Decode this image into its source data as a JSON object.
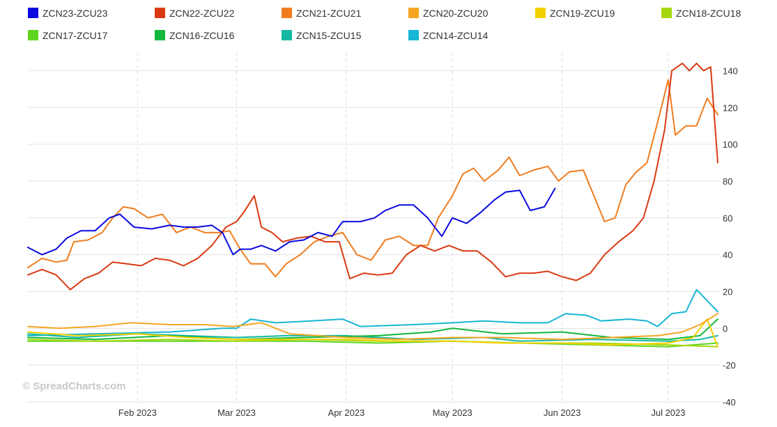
{
  "watermark": "© SpreadCharts.com",
  "chart_data": {
    "type": "line",
    "title": "",
    "xlabel": "",
    "ylabel": "",
    "x_axis": {
      "start": "2023-01-01",
      "end": "2023-07-15",
      "ticks": [
        {
          "date": "2023-02-01",
          "label": "Feb 2023"
        },
        {
          "date": "2023-03-01",
          "label": "Mar 2023"
        },
        {
          "date": "2023-04-01",
          "label": "Apr 2023"
        },
        {
          "date": "2023-05-01",
          "label": "May 2023"
        },
        {
          "date": "2023-06-01",
          "label": "Jun 2023"
        },
        {
          "date": "2023-07-01",
          "label": "Jul 2023"
        }
      ]
    },
    "ylim": [
      -40,
      150
    ],
    "yticks": [
      -40,
      -20,
      0,
      20,
      40,
      60,
      80,
      100,
      120,
      140
    ],
    "legend_position": "top",
    "series": [
      {
        "name": "ZCN23-ZCU23",
        "color": "#0a0adf",
        "points": [
          [
            "2023-01-01",
            44
          ],
          [
            "2023-01-05",
            40
          ],
          [
            "2023-01-09",
            43
          ],
          [
            "2023-01-12",
            49
          ],
          [
            "2023-01-16",
            53
          ],
          [
            "2023-01-20",
            53
          ],
          [
            "2023-01-24",
            60
          ],
          [
            "2023-01-27",
            62
          ],
          [
            "2023-01-31",
            55
          ],
          [
            "2023-02-05",
            54
          ],
          [
            "2023-02-10",
            56
          ],
          [
            "2023-02-14",
            55
          ],
          [
            "2023-02-18",
            55
          ],
          [
            "2023-02-22",
            56
          ],
          [
            "2023-02-25",
            52
          ],
          [
            "2023-02-28",
            40
          ],
          [
            "2023-03-02",
            43
          ],
          [
            "2023-03-05",
            43
          ],
          [
            "2023-03-08",
            45
          ],
          [
            "2023-03-12",
            42
          ],
          [
            "2023-03-16",
            47
          ],
          [
            "2023-03-20",
            48
          ],
          [
            "2023-03-24",
            52
          ],
          [
            "2023-03-28",
            50
          ],
          [
            "2023-03-31",
            58
          ],
          [
            "2023-04-05",
            58
          ],
          [
            "2023-04-09",
            60
          ],
          [
            "2023-04-12",
            64
          ],
          [
            "2023-04-16",
            67
          ],
          [
            "2023-04-20",
            67
          ],
          [
            "2023-04-24",
            60
          ],
          [
            "2023-04-28",
            50
          ],
          [
            "2023-05-01",
            60
          ],
          [
            "2023-05-05",
            57
          ],
          [
            "2023-05-09",
            63
          ],
          [
            "2023-05-13",
            70
          ],
          [
            "2023-05-16",
            74
          ],
          [
            "2023-05-20",
            75
          ],
          [
            "2023-05-23",
            64
          ],
          [
            "2023-05-27",
            66
          ],
          [
            "2023-05-30",
            76
          ]
        ]
      },
      {
        "name": "ZCN22-ZCU22",
        "color": "#d93a12",
        "points": [
          [
            "2023-01-01",
            29
          ],
          [
            "2023-01-05",
            32
          ],
          [
            "2023-01-09",
            29
          ],
          [
            "2023-01-13",
            21
          ],
          [
            "2023-01-17",
            27
          ],
          [
            "2023-01-21",
            30
          ],
          [
            "2023-01-25",
            36
          ],
          [
            "2023-01-29",
            35
          ],
          [
            "2023-02-02",
            34
          ],
          [
            "2023-02-06",
            38
          ],
          [
            "2023-02-10",
            37
          ],
          [
            "2023-02-14",
            34
          ],
          [
            "2023-02-18",
            38
          ],
          [
            "2023-02-22",
            45
          ],
          [
            "2023-02-26",
            55
          ],
          [
            "2023-03-01",
            58
          ],
          [
            "2023-03-03",
            63
          ],
          [
            "2023-03-06",
            72
          ],
          [
            "2023-03-08",
            55
          ],
          [
            "2023-03-11",
            52
          ],
          [
            "2023-03-14",
            47
          ],
          [
            "2023-03-18",
            49
          ],
          [
            "2023-03-22",
            50
          ],
          [
            "2023-03-26",
            47
          ],
          [
            "2023-03-30",
            47
          ],
          [
            "2023-04-02",
            27
          ],
          [
            "2023-04-06",
            30
          ],
          [
            "2023-04-10",
            29
          ],
          [
            "2023-04-14",
            30
          ],
          [
            "2023-04-18",
            40
          ],
          [
            "2023-04-22",
            45
          ],
          [
            "2023-04-26",
            42
          ],
          [
            "2023-04-30",
            45
          ],
          [
            "2023-05-04",
            42
          ],
          [
            "2023-05-08",
            42
          ],
          [
            "2023-05-12",
            36
          ],
          [
            "2023-05-16",
            28
          ],
          [
            "2023-05-20",
            30
          ],
          [
            "2023-05-24",
            30
          ],
          [
            "2023-05-28",
            31
          ],
          [
            "2023-06-01",
            28
          ],
          [
            "2023-06-05",
            26
          ],
          [
            "2023-06-09",
            30
          ],
          [
            "2023-06-13",
            40
          ],
          [
            "2023-06-17",
            47
          ],
          [
            "2023-06-21",
            53
          ],
          [
            "2023-06-24",
            60
          ],
          [
            "2023-06-27",
            80
          ],
          [
            "2023-06-30",
            108
          ],
          [
            "2023-07-02",
            140
          ],
          [
            "2023-07-05",
            144
          ],
          [
            "2023-07-07",
            140
          ],
          [
            "2023-07-09",
            144
          ],
          [
            "2023-07-11",
            140
          ],
          [
            "2023-07-13",
            142
          ],
          [
            "2023-07-15",
            90
          ]
        ]
      },
      {
        "name": "ZCN21-ZCU21",
        "color": "#f07c1e",
        "points": [
          [
            "2023-01-01",
            33
          ],
          [
            "2023-01-05",
            38
          ],
          [
            "2023-01-09",
            36
          ],
          [
            "2023-01-12",
            37
          ],
          [
            "2023-01-14",
            47
          ],
          [
            "2023-01-18",
            48
          ],
          [
            "2023-01-22",
            52
          ],
          [
            "2023-01-25",
            60
          ],
          [
            "2023-01-28",
            66
          ],
          [
            "2023-01-31",
            65
          ],
          [
            "2023-02-04",
            60
          ],
          [
            "2023-02-08",
            62
          ],
          [
            "2023-02-12",
            52
          ],
          [
            "2023-02-16",
            55
          ],
          [
            "2023-02-20",
            52
          ],
          [
            "2023-02-24",
            52
          ],
          [
            "2023-02-27",
            53
          ],
          [
            "2023-03-02",
            43
          ],
          [
            "2023-03-05",
            35
          ],
          [
            "2023-03-09",
            35
          ],
          [
            "2023-03-12",
            28
          ],
          [
            "2023-03-15",
            35
          ],
          [
            "2023-03-19",
            40
          ],
          [
            "2023-03-23",
            47
          ],
          [
            "2023-03-27",
            50
          ],
          [
            "2023-03-31",
            52
          ],
          [
            "2023-04-04",
            40
          ],
          [
            "2023-04-08",
            37
          ],
          [
            "2023-04-12",
            48
          ],
          [
            "2023-04-16",
            50
          ],
          [
            "2023-04-20",
            45
          ],
          [
            "2023-04-24",
            45
          ],
          [
            "2023-04-27",
            60
          ],
          [
            "2023-05-01",
            72
          ],
          [
            "2023-05-04",
            84
          ],
          [
            "2023-05-07",
            87
          ],
          [
            "2023-05-10",
            80
          ],
          [
            "2023-05-14",
            86
          ],
          [
            "2023-05-17",
            93
          ],
          [
            "2023-05-20",
            83
          ],
          [
            "2023-05-24",
            86
          ],
          [
            "2023-05-28",
            88
          ],
          [
            "2023-05-31",
            80
          ],
          [
            "2023-06-03",
            85
          ],
          [
            "2023-06-07",
            86
          ],
          [
            "2023-06-10",
            72
          ],
          [
            "2023-06-13",
            58
          ],
          [
            "2023-06-16",
            60
          ],
          [
            "2023-06-19",
            78
          ],
          [
            "2023-06-22",
            85
          ],
          [
            "2023-06-25",
            90
          ],
          [
            "2023-06-28",
            112
          ],
          [
            "2023-07-01",
            135
          ],
          [
            "2023-07-03",
            105
          ],
          [
            "2023-07-06",
            110
          ],
          [
            "2023-07-09",
            110
          ],
          [
            "2023-07-12",
            125
          ],
          [
            "2023-07-15",
            116
          ]
        ]
      },
      {
        "name": "ZCN20-ZCU20",
        "color": "#f5a623",
        "points": [
          [
            "2023-01-01",
            1
          ],
          [
            "2023-01-10",
            0
          ],
          [
            "2023-01-20",
            1
          ],
          [
            "2023-01-30",
            3
          ],
          [
            "2023-02-10",
            2
          ],
          [
            "2023-02-20",
            2
          ],
          [
            "2023-02-28",
            1
          ],
          [
            "2023-03-08",
            3
          ],
          [
            "2023-03-16",
            -3
          ],
          [
            "2023-03-24",
            -4
          ],
          [
            "2023-04-01",
            -5
          ],
          [
            "2023-04-15",
            -6
          ],
          [
            "2023-05-01",
            -5
          ],
          [
            "2023-05-15",
            -5
          ],
          [
            "2023-06-01",
            -6
          ],
          [
            "2023-06-15",
            -5
          ],
          [
            "2023-06-28",
            -4
          ],
          [
            "2023-07-05",
            -2
          ],
          [
            "2023-07-10",
            2
          ],
          [
            "2023-07-15",
            8
          ]
        ]
      },
      {
        "name": "ZCN19-ZCU19",
        "color": "#f2d100",
        "points": [
          [
            "2023-01-01",
            -2
          ],
          [
            "2023-01-15",
            -4
          ],
          [
            "2023-02-01",
            -3
          ],
          [
            "2023-02-15",
            -5
          ],
          [
            "2023-03-01",
            -6
          ],
          [
            "2023-03-15",
            -6
          ],
          [
            "2023-04-01",
            -6
          ],
          [
            "2023-04-15",
            -7
          ],
          [
            "2023-05-01",
            -7
          ],
          [
            "2023-05-15",
            -8
          ],
          [
            "2023-06-01",
            -8
          ],
          [
            "2023-06-15",
            -9
          ],
          [
            "2023-07-01",
            -8
          ],
          [
            "2023-07-08",
            -5
          ],
          [
            "2023-07-12",
            5
          ],
          [
            "2023-07-15",
            -10
          ]
        ]
      },
      {
        "name": "ZCN18-ZCU18",
        "color": "#a7d80f",
        "points": [
          [
            "2023-01-01",
            -6
          ],
          [
            "2023-01-20",
            -7
          ],
          [
            "2023-02-10",
            -6
          ],
          [
            "2023-03-01",
            -7
          ],
          [
            "2023-03-20",
            -6
          ],
          [
            "2023-04-10",
            -7
          ],
          [
            "2023-05-01",
            -7
          ],
          [
            "2023-05-20",
            -8
          ],
          [
            "2023-06-10",
            -8
          ],
          [
            "2023-07-01",
            -9
          ],
          [
            "2023-07-15",
            -10
          ]
        ]
      },
      {
        "name": "ZCN17-ZCU17",
        "color": "#5fd41f",
        "points": [
          [
            "2023-01-01",
            -7
          ],
          [
            "2023-01-20",
            -7
          ],
          [
            "2023-02-10",
            -7
          ],
          [
            "2023-03-01",
            -7
          ],
          [
            "2023-03-20",
            -7
          ],
          [
            "2023-04-10",
            -8
          ],
          [
            "2023-05-01",
            -7
          ],
          [
            "2023-05-20",
            -8
          ],
          [
            "2023-06-10",
            -9
          ],
          [
            "2023-07-01",
            -10
          ],
          [
            "2023-07-15",
            -8
          ]
        ]
      },
      {
        "name": "ZCN16-ZCU16",
        "color": "#13b83e",
        "points": [
          [
            "2023-01-01",
            -5
          ],
          [
            "2023-01-20",
            -6
          ],
          [
            "2023-02-10",
            -4
          ],
          [
            "2023-03-01",
            -6
          ],
          [
            "2023-03-20",
            -5
          ],
          [
            "2023-04-10",
            -4
          ],
          [
            "2023-04-25",
            -2
          ],
          [
            "2023-05-01",
            0
          ],
          [
            "2023-05-15",
            -3
          ],
          [
            "2023-06-01",
            -2
          ],
          [
            "2023-06-15",
            -5
          ],
          [
            "2023-07-01",
            -6
          ],
          [
            "2023-07-10",
            -4
          ],
          [
            "2023-07-15",
            5
          ]
        ]
      },
      {
        "name": "ZCN15-ZCU15",
        "color": "#15b8a2",
        "points": [
          [
            "2023-01-01",
            -3
          ],
          [
            "2023-01-15",
            -5
          ],
          [
            "2023-02-01",
            -3
          ],
          [
            "2023-02-15",
            -4
          ],
          [
            "2023-03-01",
            -5
          ],
          [
            "2023-03-15",
            -4
          ],
          [
            "2023-04-01",
            -4
          ],
          [
            "2023-04-20",
            -6
          ],
          [
            "2023-05-10",
            -5
          ],
          [
            "2023-05-20",
            -7
          ],
          [
            "2023-06-10",
            -6
          ],
          [
            "2023-07-01",
            -7
          ],
          [
            "2023-07-10",
            -6
          ],
          [
            "2023-07-15",
            -4
          ]
        ]
      },
      {
        "name": "ZCN14-ZCU14",
        "color": "#18b6d4",
        "points": [
          [
            "2023-01-01",
            -4
          ],
          [
            "2023-01-20",
            -3
          ],
          [
            "2023-02-10",
            -2
          ],
          [
            "2023-02-25",
            0
          ],
          [
            "2023-03-01",
            0
          ],
          [
            "2023-03-05",
            5
          ],
          [
            "2023-03-12",
            3
          ],
          [
            "2023-03-22",
            4
          ],
          [
            "2023-03-31",
            5
          ],
          [
            "2023-04-05",
            1
          ],
          [
            "2023-04-20",
            2
          ],
          [
            "2023-05-01",
            3
          ],
          [
            "2023-05-10",
            4
          ],
          [
            "2023-05-20",
            3
          ],
          [
            "2023-05-28",
            3
          ],
          [
            "2023-06-02",
            8
          ],
          [
            "2023-06-08",
            7
          ],
          [
            "2023-06-12",
            4
          ],
          [
            "2023-06-20",
            5
          ],
          [
            "2023-06-25",
            4
          ],
          [
            "2023-06-28",
            1
          ],
          [
            "2023-07-02",
            8
          ],
          [
            "2023-07-06",
            9
          ],
          [
            "2023-07-09",
            21
          ],
          [
            "2023-07-15",
            9
          ]
        ]
      }
    ]
  }
}
